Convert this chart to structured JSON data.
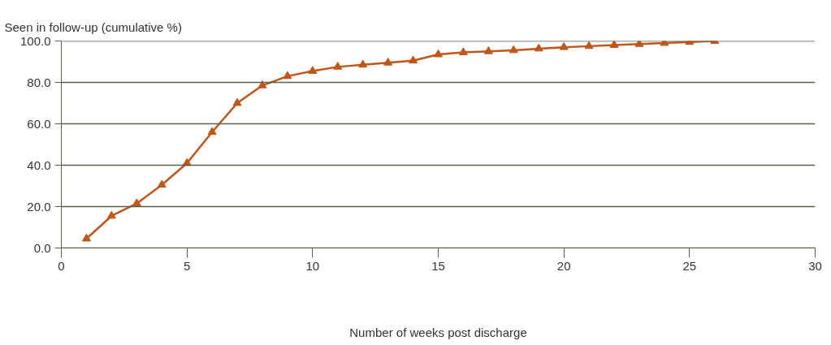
{
  "chart_data": {
    "type": "line",
    "ylabel": "Seen in follow-up (cumulative %)",
    "xlabel": "Number of weeks post discharge",
    "x": [
      1,
      2,
      3,
      4,
      5,
      6,
      7,
      8,
      9,
      10,
      11,
      12,
      13,
      14,
      15,
      16,
      17,
      18,
      19,
      20,
      21,
      22,
      23,
      24,
      25,
      26
    ],
    "series": [
      {
        "color": "#c0561a",
        "values": [
          4.5,
          15.5,
          21.5,
          30.5,
          41,
          56,
          70,
          78.5,
          83,
          85.5,
          87.5,
          88.5,
          89.5,
          90.5,
          93.5,
          94.5,
          95,
          95.5,
          96.3,
          97,
          97.5,
          98,
          98.5,
          99,
          99.5,
          100
        ]
      }
    ],
    "xlim": [
      0,
      30
    ],
    "xticks": [
      0,
      5,
      10,
      15,
      20,
      25,
      30
    ],
    "ylim": [
      0,
      100
    ],
    "yticks": [
      {
        "value": 0,
        "label": "0.0"
      },
      {
        "value": 20,
        "label": "20.0"
      },
      {
        "value": 40,
        "label": "40.0"
      },
      {
        "value": 60,
        "label": "60.0"
      },
      {
        "value": 80,
        "label": "80.0"
      },
      {
        "value": 100,
        "label": "100.0"
      }
    ],
    "grid": "y",
    "marker": "triangle",
    "line_style": "solid"
  }
}
